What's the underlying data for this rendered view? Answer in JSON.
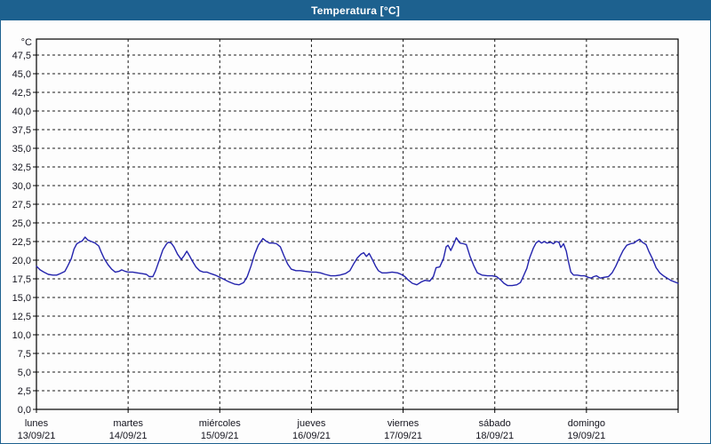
{
  "header": {
    "title": "Temperatura [°C]"
  },
  "colors": {
    "titlebar_bg": "#1d618f",
    "titlebar_text": "#ffffff",
    "window_border": "#1d618f",
    "plot_border": "#000000",
    "gridline": "#1a1a1a",
    "series_line": "#2323ad",
    "label_text": "#14141e",
    "background": "#fdfdfd"
  },
  "chart_data": {
    "type": "line",
    "title": "Temperatura [°C]",
    "y_unit_label": "°C",
    "ylim": [
      0,
      50
    ],
    "y_tick_step": 2.5,
    "y_tick_labels_top_to_bottom": [
      "47,5",
      "45,0",
      "42,5",
      "40,0",
      "37,5",
      "35,0",
      "32,5",
      "30,0",
      "27,5",
      "25,0",
      "22,5",
      "20,0",
      "17,5",
      "15,0",
      "12,5",
      "10,0",
      "7,5",
      "5,0",
      "2,5",
      "0,0"
    ],
    "grid": "dashed",
    "legend": "none",
    "x_range_days": 7,
    "x_days": [
      {
        "name": "lunes",
        "date": "13/09/21"
      },
      {
        "name": "martes",
        "date": "14/09/21"
      },
      {
        "name": "miércoles",
        "date": "15/09/21"
      },
      {
        "name": "jueves",
        "date": "16/09/21"
      },
      {
        "name": "viernes",
        "date": "17/09/21"
      },
      {
        "name": "sábado",
        "date": "18/09/21"
      },
      {
        "name": "domingo",
        "date": "19/09/21"
      }
    ],
    "series": [
      {
        "name": "Temperatura",
        "x_unit": "days_since_monday_00h",
        "y_unit": "degC",
        "points": [
          [
            0.0,
            19.2
          ],
          [
            0.04,
            18.7
          ],
          [
            0.08,
            18.4
          ],
          [
            0.13,
            18.1
          ],
          [
            0.18,
            18.0
          ],
          [
            0.22,
            18.0
          ],
          [
            0.26,
            18.2
          ],
          [
            0.31,
            18.5
          ],
          [
            0.34,
            19.2
          ],
          [
            0.38,
            20.2
          ],
          [
            0.41,
            21.5
          ],
          [
            0.44,
            22.2
          ],
          [
            0.47,
            22.4
          ],
          [
            0.5,
            22.6
          ],
          [
            0.53,
            23.1
          ],
          [
            0.56,
            22.7
          ],
          [
            0.6,
            22.5
          ],
          [
            0.64,
            22.3
          ],
          [
            0.68,
            21.9
          ],
          [
            0.71,
            21.0
          ],
          [
            0.74,
            20.2
          ],
          [
            0.78,
            19.4
          ],
          [
            0.82,
            18.8
          ],
          [
            0.86,
            18.4
          ],
          [
            0.9,
            18.5
          ],
          [
            0.93,
            18.7
          ],
          [
            0.97,
            18.5
          ],
          [
            1.0,
            18.4
          ],
          [
            1.05,
            18.4
          ],
          [
            1.1,
            18.3
          ],
          [
            1.15,
            18.2
          ],
          [
            1.2,
            18.1
          ],
          [
            1.23,
            17.8
          ],
          [
            1.27,
            17.8
          ],
          [
            1.3,
            18.6
          ],
          [
            1.34,
            20.0
          ],
          [
            1.38,
            21.4
          ],
          [
            1.42,
            22.2
          ],
          [
            1.44,
            22.4
          ],
          [
            1.47,
            22.3
          ],
          [
            1.5,
            21.8
          ],
          [
            1.54,
            20.8
          ],
          [
            1.58,
            20.1
          ],
          [
            1.61,
            20.6
          ],
          [
            1.64,
            21.2
          ],
          [
            1.67,
            20.6
          ],
          [
            1.7,
            19.9
          ],
          [
            1.74,
            19.1
          ],
          [
            1.78,
            18.6
          ],
          [
            1.82,
            18.4
          ],
          [
            1.86,
            18.4
          ],
          [
            1.9,
            18.2
          ],
          [
            1.95,
            18.0
          ],
          [
            2.0,
            17.7
          ],
          [
            2.05,
            17.4
          ],
          [
            2.1,
            17.1
          ],
          [
            2.16,
            16.8
          ],
          [
            2.21,
            16.7
          ],
          [
            2.26,
            17.0
          ],
          [
            2.3,
            17.8
          ],
          [
            2.34,
            19.2
          ],
          [
            2.38,
            20.8
          ],
          [
            2.42,
            22.0
          ],
          [
            2.47,
            22.9
          ],
          [
            2.5,
            22.6
          ],
          [
            2.54,
            22.3
          ],
          [
            2.58,
            22.3
          ],
          [
            2.62,
            22.2
          ],
          [
            2.66,
            21.8
          ],
          [
            2.7,
            20.6
          ],
          [
            2.74,
            19.5
          ],
          [
            2.78,
            18.8
          ],
          [
            2.83,
            18.6
          ],
          [
            2.88,
            18.6
          ],
          [
            2.93,
            18.5
          ],
          [
            3.0,
            18.4
          ],
          [
            3.05,
            18.4
          ],
          [
            3.1,
            18.3
          ],
          [
            3.15,
            18.1
          ],
          [
            3.21,
            17.9
          ],
          [
            3.26,
            17.9
          ],
          [
            3.31,
            18.0
          ],
          [
            3.37,
            18.2
          ],
          [
            3.42,
            18.6
          ],
          [
            3.46,
            19.5
          ],
          [
            3.5,
            20.3
          ],
          [
            3.54,
            20.8
          ],
          [
            3.57,
            21.0
          ],
          [
            3.6,
            20.5
          ],
          [
            3.63,
            20.9
          ],
          [
            3.66,
            20.2
          ],
          [
            3.7,
            19.2
          ],
          [
            3.73,
            18.6
          ],
          [
            3.77,
            18.3
          ],
          [
            3.82,
            18.3
          ],
          [
            3.88,
            18.4
          ],
          [
            3.94,
            18.3
          ],
          [
            3.98,
            18.1
          ],
          [
            4.02,
            17.8
          ],
          [
            4.06,
            17.3
          ],
          [
            4.1,
            16.9
          ],
          [
            4.15,
            16.7
          ],
          [
            4.2,
            17.1
          ],
          [
            4.24,
            17.3
          ],
          [
            4.29,
            17.2
          ],
          [
            4.33,
            17.8
          ],
          [
            4.36,
            19.0
          ],
          [
            4.4,
            19.1
          ],
          [
            4.44,
            20.2
          ],
          [
            4.47,
            21.8
          ],
          [
            4.49,
            22.0
          ],
          [
            4.52,
            21.3
          ],
          [
            4.55,
            22.1
          ],
          [
            4.58,
            23.0
          ],
          [
            4.62,
            22.3
          ],
          [
            4.66,
            22.2
          ],
          [
            4.69,
            22.1
          ],
          [
            4.73,
            20.5
          ],
          [
            4.77,
            19.3
          ],
          [
            4.81,
            18.3
          ],
          [
            4.86,
            18.0
          ],
          [
            4.92,
            17.9
          ],
          [
            4.97,
            17.9
          ],
          [
            5.02,
            17.8
          ],
          [
            5.06,
            17.4
          ],
          [
            5.1,
            16.9
          ],
          [
            5.14,
            16.6
          ],
          [
            5.19,
            16.6
          ],
          [
            5.24,
            16.7
          ],
          [
            5.28,
            17.0
          ],
          [
            5.31,
            17.8
          ],
          [
            5.35,
            18.9
          ],
          [
            5.38,
            20.3
          ],
          [
            5.42,
            21.6
          ],
          [
            5.45,
            22.3
          ],
          [
            5.48,
            22.6
          ],
          [
            5.51,
            22.3
          ],
          [
            5.54,
            22.5
          ],
          [
            5.57,
            22.3
          ],
          [
            5.61,
            22.4
          ],
          [
            5.64,
            22.2
          ],
          [
            5.67,
            22.5
          ],
          [
            5.7,
            22.4
          ],
          [
            5.72,
            21.7
          ],
          [
            5.75,
            22.2
          ],
          [
            5.78,
            21.2
          ],
          [
            5.8,
            20.0
          ],
          [
            5.83,
            18.4
          ],
          [
            5.86,
            18.0
          ],
          [
            5.9,
            18.0
          ],
          [
            5.94,
            17.9
          ],
          [
            5.98,
            17.9
          ],
          [
            6.02,
            17.7
          ],
          [
            6.05,
            17.6
          ],
          [
            6.08,
            17.8
          ],
          [
            6.11,
            17.9
          ],
          [
            6.15,
            17.6
          ],
          [
            6.19,
            17.7
          ],
          [
            6.24,
            17.8
          ],
          [
            6.28,
            18.3
          ],
          [
            6.32,
            19.2
          ],
          [
            6.36,
            20.3
          ],
          [
            6.4,
            21.3
          ],
          [
            6.44,
            22.0
          ],
          [
            6.48,
            22.2
          ],
          [
            6.52,
            22.3
          ],
          [
            6.55,
            22.6
          ],
          [
            6.58,
            22.8
          ],
          [
            6.61,
            22.4
          ],
          [
            6.65,
            22.1
          ],
          [
            6.68,
            21.2
          ],
          [
            6.72,
            20.2
          ],
          [
            6.76,
            19.0
          ],
          [
            6.8,
            18.3
          ],
          [
            6.84,
            17.9
          ],
          [
            6.88,
            17.6
          ],
          [
            6.92,
            17.3
          ],
          [
            6.96,
            17.1
          ],
          [
            7.0,
            16.9
          ]
        ]
      }
    ]
  }
}
